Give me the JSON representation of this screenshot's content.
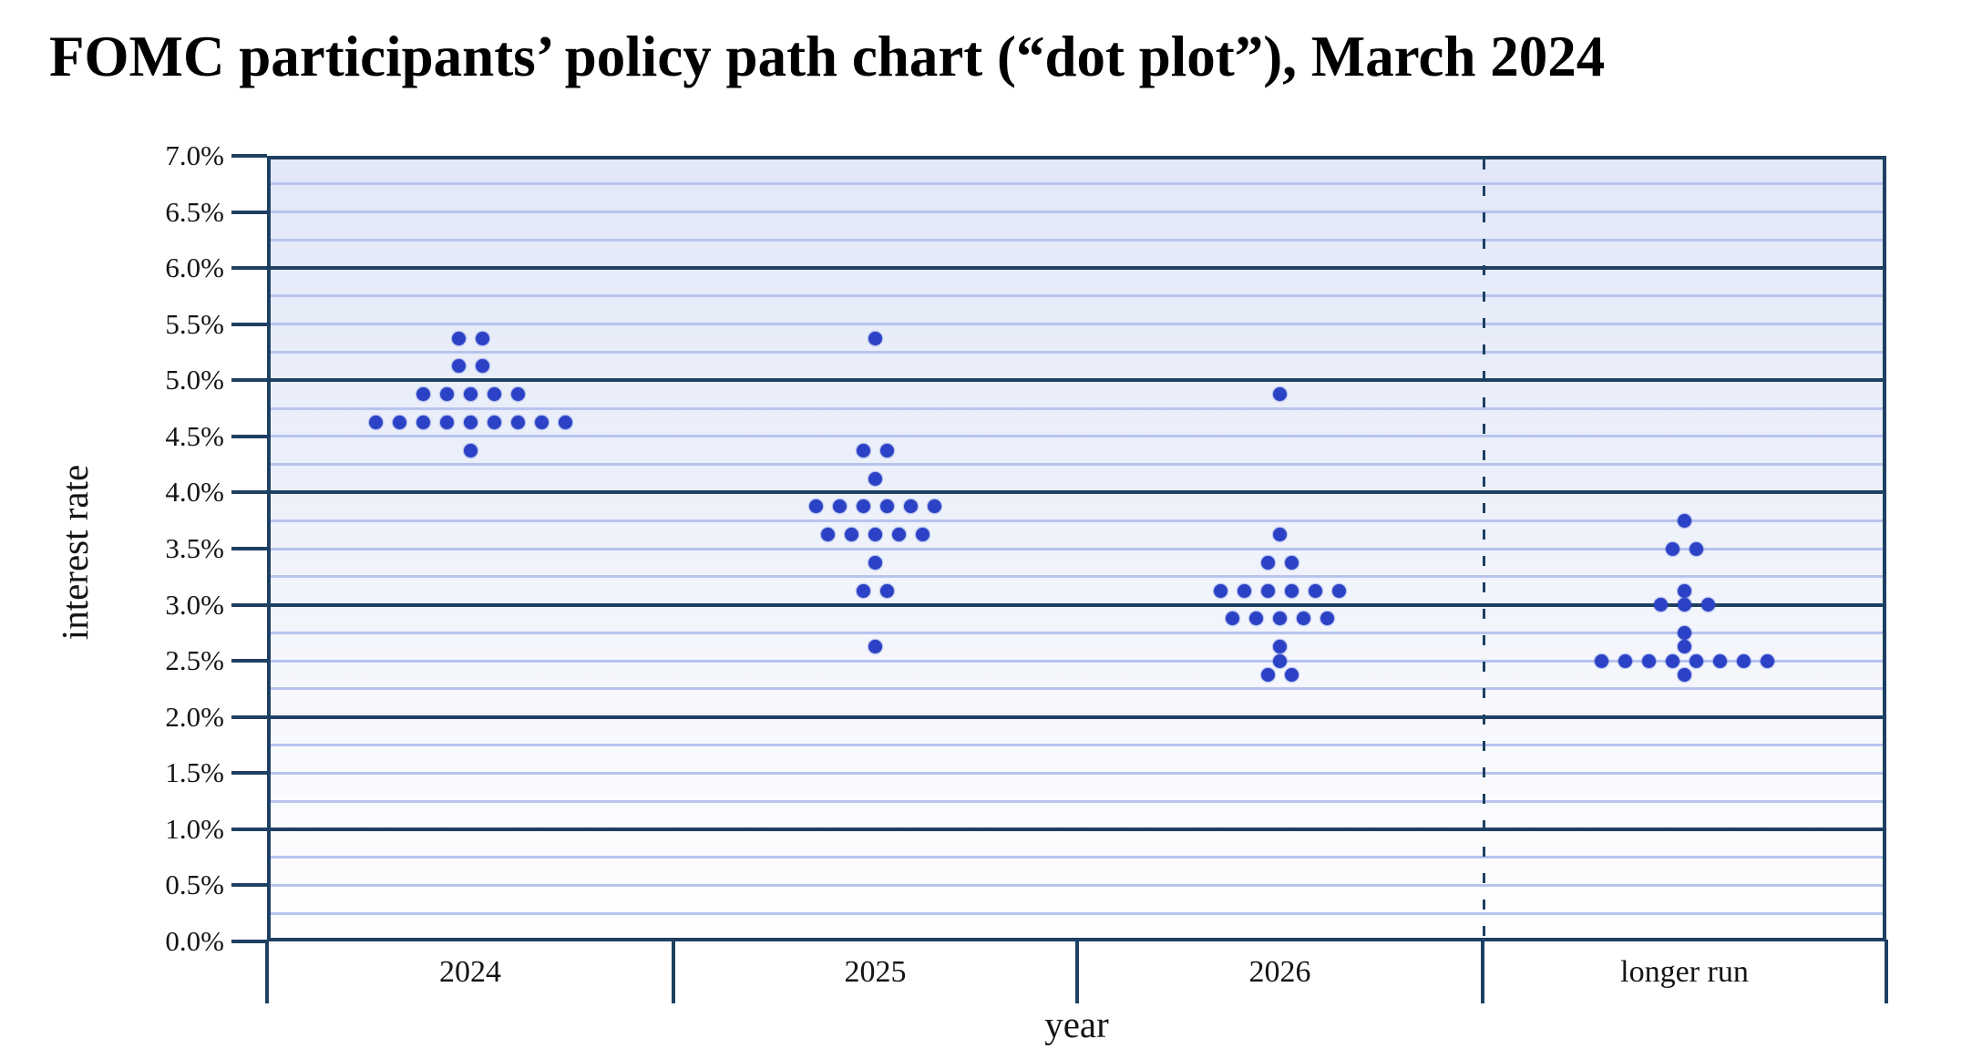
{
  "title": "FOMC participants’ policy path chart (“dot plot”), March 2024",
  "x_axis_title": "year",
  "y_axis_title": "interest rate",
  "y_tick_labels": [
    "7.0%",
    "6.5%",
    "6.0%",
    "5.5%",
    "5.0%",
    "4.5%",
    "4.0%",
    "3.5%",
    "3.0%",
    "2.5%",
    "2.0%",
    "1.5%",
    "1.0%",
    "0.5%",
    "0.0%"
  ],
  "chart_data": {
    "type": "scatter",
    "subtype": "dot-plot-histogram",
    "title": "FOMC participants’ policy path chart (“dot plot”), March 2024",
    "xlabel": "year",
    "ylabel": "interest rate",
    "ylim": [
      0.0,
      7.0
    ],
    "y_tick_step": 0.5,
    "y_minor_gridline_step": 0.25,
    "y_major_gridline_step": 1.0,
    "grid": true,
    "legend": false,
    "categories": [
      "2024",
      "2025",
      "2026",
      "longer run"
    ],
    "dashed_divider_before_category": "longer run",
    "columns": [
      {
        "label": "2024",
        "dots": [
          {
            "rate": 5.375,
            "count": 2
          },
          {
            "rate": 5.125,
            "count": 2
          },
          {
            "rate": 4.875,
            "count": 5
          },
          {
            "rate": 4.625,
            "count": 9
          },
          {
            "rate": 4.375,
            "count": 1
          }
        ]
      },
      {
        "label": "2025",
        "dots": [
          {
            "rate": 5.375,
            "count": 1
          },
          {
            "rate": 4.375,
            "count": 2
          },
          {
            "rate": 4.125,
            "count": 1
          },
          {
            "rate": 3.875,
            "count": 6
          },
          {
            "rate": 3.625,
            "count": 5
          },
          {
            "rate": 3.375,
            "count": 1
          },
          {
            "rate": 3.125,
            "count": 2
          },
          {
            "rate": 2.625,
            "count": 1
          }
        ]
      },
      {
        "label": "2026",
        "dots": [
          {
            "rate": 4.875,
            "count": 1
          },
          {
            "rate": 3.625,
            "count": 1
          },
          {
            "rate": 3.375,
            "count": 2
          },
          {
            "rate": 3.125,
            "count": 6
          },
          {
            "rate": 2.875,
            "count": 5
          },
          {
            "rate": 2.625,
            "count": 1
          },
          {
            "rate": 2.5,
            "count": 1
          },
          {
            "rate": 2.375,
            "count": 2
          }
        ]
      },
      {
        "label": "longer run",
        "dots": [
          {
            "rate": 3.75,
            "count": 1
          },
          {
            "rate": 3.5,
            "count": 2
          },
          {
            "rate": 3.125,
            "count": 1
          },
          {
            "rate": 3.0,
            "count": 3
          },
          {
            "rate": 2.75,
            "count": 1
          },
          {
            "rate": 2.625,
            "count": 1
          },
          {
            "rate": 2.5,
            "count": 8
          },
          {
            "rate": 2.375,
            "count": 1
          }
        ]
      }
    ],
    "colors": {
      "dot": "#2b42c6",
      "dark_line": "#1e4062",
      "light_line": "#b8c4ee",
      "background_top": "#e2e8f8",
      "background_bottom": "#fefeff",
      "text": "#141414"
    }
  }
}
